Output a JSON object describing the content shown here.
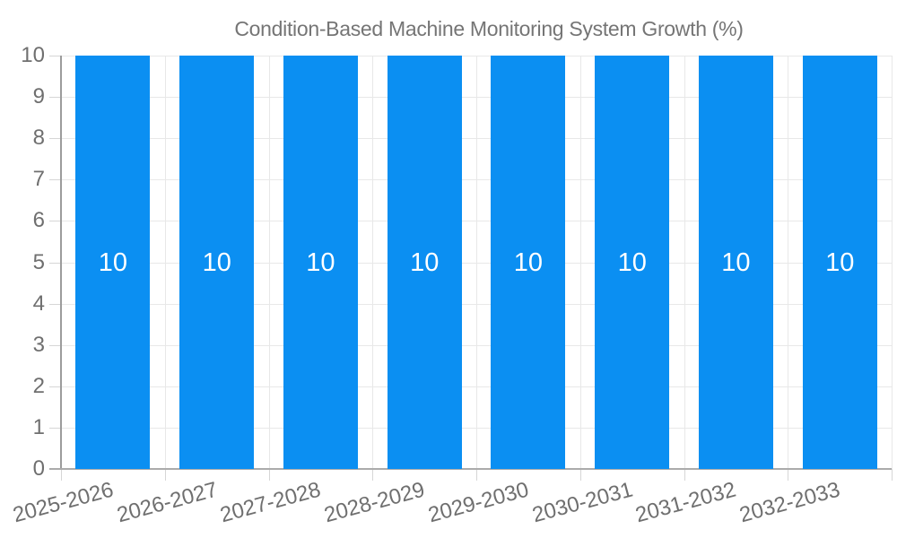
{
  "legend": {
    "label": "Condition-Based Machine Monitoring System Growth (%)"
  },
  "chart_data": {
    "type": "bar",
    "title": "Condition-Based Machine Monitoring System Growth (%)",
    "categories": [
      "2025-2026",
      "2026-2027",
      "2027-2028",
      "2028-2029",
      "2029-2030",
      "2030-2031",
      "2031-2032",
      "2032-2033"
    ],
    "series": [
      {
        "name": "Condition-Based Machine Monitoring System Growth (%)",
        "values": [
          10,
          10,
          10,
          10,
          10,
          10,
          10,
          10
        ]
      }
    ],
    "data_labels": [
      "10",
      "10",
      "10",
      "10",
      "10",
      "10",
      "10",
      "10"
    ],
    "xlabel": "",
    "ylabel": "",
    "ylim": [
      0,
      10
    ],
    "yticks": [
      0,
      1,
      2,
      3,
      4,
      5,
      6,
      7,
      8,
      9,
      10
    ],
    "grid": true,
    "legend_position": "top",
    "colors": {
      "bar": "#0b8ff2",
      "grid": "#e8e8e8",
      "axis": "#a2a2a2",
      "tick": "#d6d6d6",
      "axis_label": "#6f6f6f",
      "legend_text": "#757575",
      "value_label": "#ffffff"
    }
  }
}
